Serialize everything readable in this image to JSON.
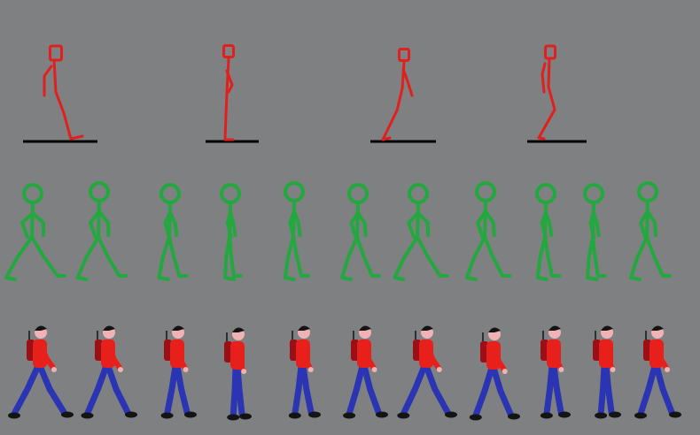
{
  "title": "",
  "colors": {
    "background": "#7f8081",
    "key_pose_stroke": "#e0201e",
    "ground_line": "#000000",
    "stick_stroke": "#23a83f",
    "shirt": "#e8201c",
    "pants": "#2b35b4",
    "backpack": "#9a1016",
    "skin": "#f1b2b6",
    "hair_shoes": "#141414"
  },
  "rows": [
    {
      "name": "key-poses",
      "style": "red-stick-with-ground",
      "frame_count": 4
    },
    {
      "name": "walk-cycle-stick",
      "style": "green-stick",
      "frame_count": 11
    },
    {
      "name": "walk-cycle-character",
      "style": "hiker-with-backpack",
      "frame_count": 11
    }
  ]
}
